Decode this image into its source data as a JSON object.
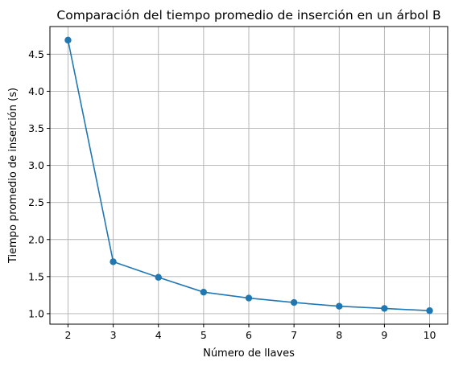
{
  "chart_data": {
    "type": "line",
    "title": "Comparación del tiempo promedio de inserción en un árbol B",
    "xlabel": "Número de llaves",
    "ylabel": "Tiempo promedio de inserción (s)",
    "x": [
      2,
      3,
      4,
      5,
      6,
      7,
      8,
      9,
      10
    ],
    "y": [
      4.69,
      1.7,
      1.49,
      1.29,
      1.21,
      1.15,
      1.1,
      1.07,
      1.04
    ],
    "xticks": [
      "2",
      "3",
      "4",
      "5",
      "6",
      "7",
      "8",
      "9",
      "10"
    ],
    "yticks": [
      "1.0",
      "1.5",
      "2.0",
      "2.5",
      "3.0",
      "3.5",
      "4.0",
      "4.5"
    ],
    "xlim": [
      1.6,
      10.4
    ],
    "ylim": [
      0.858,
      4.873
    ],
    "grid": true,
    "markers": "circle",
    "color": "#1f77b4"
  }
}
